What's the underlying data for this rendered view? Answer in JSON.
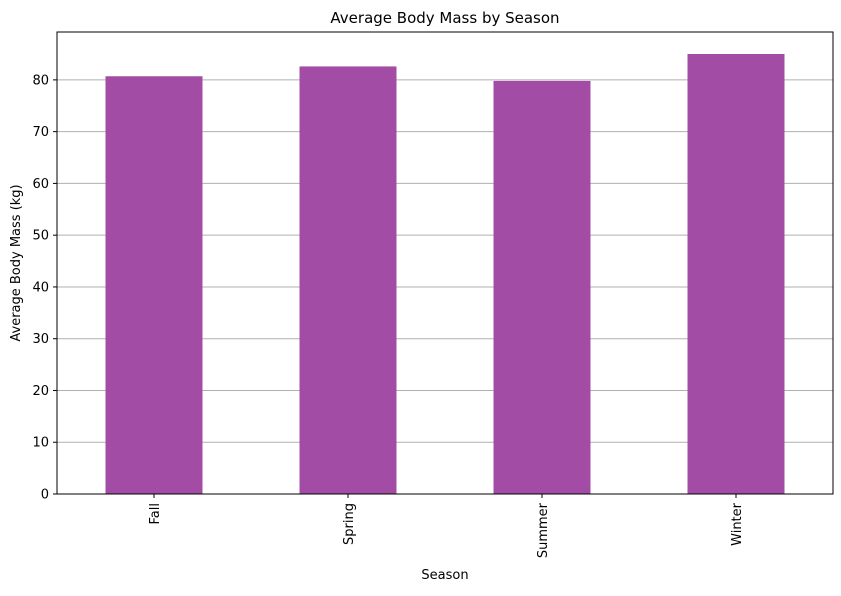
{
  "chart_data": {
    "type": "bar",
    "title": "Average Body Mass by Season",
    "xlabel": "Season",
    "ylabel": "Average Body Mass (kg)",
    "categories": [
      "Fall",
      "Spring",
      "Summer",
      "Winter"
    ],
    "values": [
      80.7,
      82.6,
      79.8,
      85.0
    ],
    "ylim": [
      0,
      89.25
    ],
    "yticks": [
      0,
      10,
      20,
      30,
      40,
      50,
      60,
      70,
      80
    ],
    "grid": "y-axis",
    "legend": "none",
    "colors": {
      "bar": "#a24ca5",
      "grid": "#b0b0b0",
      "axis": "#000000"
    }
  }
}
